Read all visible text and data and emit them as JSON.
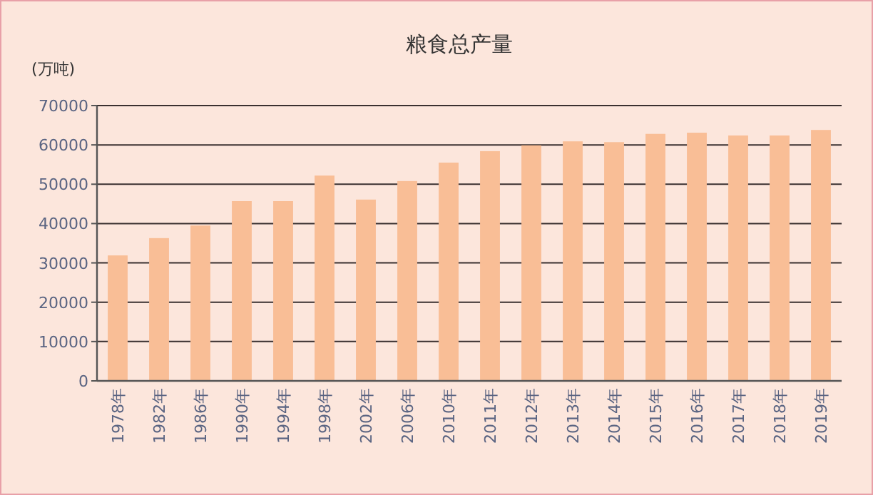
{
  "chart_data": {
    "type": "bar",
    "title": "粮食总产量",
    "ylabel": "(万吨)",
    "categories": [
      "1978年",
      "1982年",
      "1986年",
      "1990年",
      "1994年",
      "1998年",
      "2002年",
      "2006年",
      "2010年",
      "2011年",
      "2012年",
      "2013年",
      "2014年",
      "2015年",
      "2016年",
      "2017年",
      "2018年",
      "2019年"
    ],
    "values": [
      31900,
      36300,
      39500,
      45700,
      45700,
      52200,
      46100,
      50800,
      55500,
      58400,
      59900,
      60900,
      60700,
      62800,
      63100,
      62400,
      62400,
      63800
    ],
    "color": "#f9be96",
    "ylim": [
      0,
      70000
    ],
    "yticks": [
      0,
      10000,
      20000,
      30000,
      40000,
      50000,
      60000,
      70000
    ],
    "grid": "y"
  }
}
